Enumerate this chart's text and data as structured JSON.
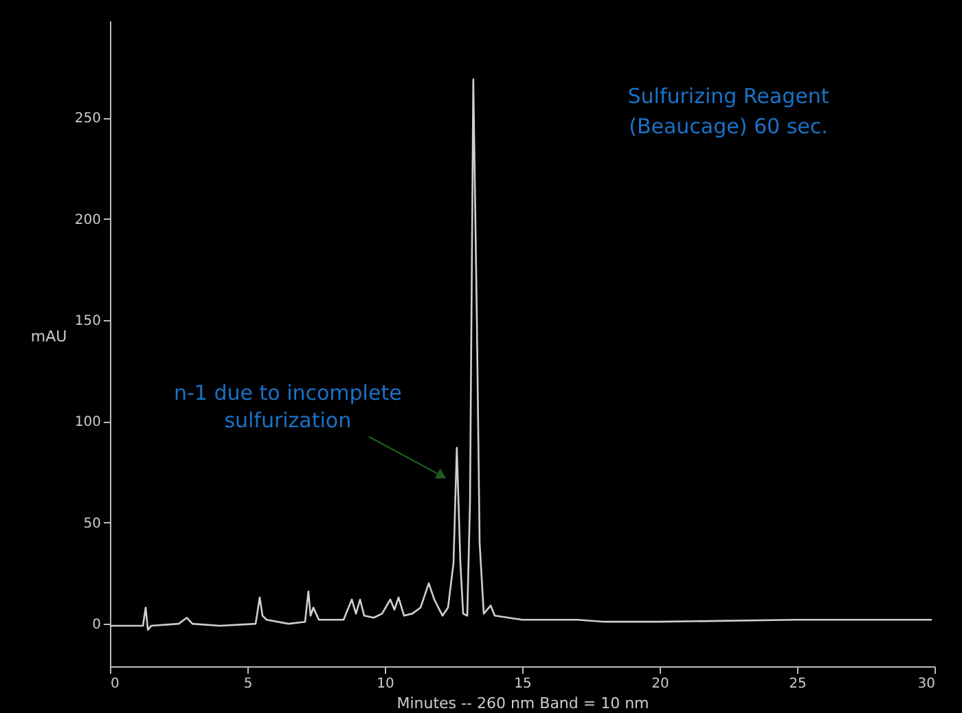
{
  "chart_data": {
    "type": "line",
    "xlabel": "Minutes -- 260 nm Band = 10 nm",
    "ylabel": "mAU",
    "x": [
      0,
      1.2,
      1.3,
      1.38,
      1.5,
      2.5,
      2.8,
      3.0,
      4.0,
      5.3,
      5.45,
      5.55,
      5.7,
      6.5,
      7.1,
      7.22,
      7.3,
      7.4,
      7.6,
      8.5,
      8.8,
      8.95,
      9.1,
      9.25,
      9.6,
      9.9,
      10.2,
      10.35,
      10.5,
      10.7,
      11.0,
      11.3,
      11.6,
      11.8,
      12.1,
      12.3,
      12.5,
      12.62,
      12.75,
      12.85,
      13.0,
      13.1,
      13.22,
      13.35,
      13.45,
      13.6,
      13.85,
      14.0,
      14.5,
      15,
      16,
      17,
      18,
      20,
      25,
      29.9
    ],
    "series": [
      {
        "color": "#d0d0d0",
        "values": [
          -1,
          -1,
          8,
          -3,
          -1,
          0,
          3,
          0,
          -1,
          0,
          13,
          4,
          2,
          0,
          1,
          16,
          4,
          8,
          2,
          2,
          12,
          5,
          12,
          4,
          3,
          5,
          12,
          7,
          13,
          4,
          5,
          8,
          20,
          12,
          4,
          8,
          30,
          87,
          30,
          5,
          4,
          60,
          269,
          150,
          40,
          5,
          9,
          4,
          3,
          2,
          2,
          2,
          1,
          1,
          2,
          2
        ]
      }
    ],
    "xlim": [
      0,
      30
    ],
    "ylim": [
      -21,
      298
    ],
    "xticks": [
      0,
      5,
      10,
      15,
      20,
      25,
      30
    ],
    "yticks": [
      0,
      50,
      100,
      150,
      200,
      250
    ],
    "grid": false,
    "annotations": [
      "Sulfurizing Reagent\n(Beaucage) 60 sec.",
      {
        "text": "n-1 due to incomplete\nsulfurization",
        "x": 12.62,
        "y": 87
      }
    ]
  }
}
